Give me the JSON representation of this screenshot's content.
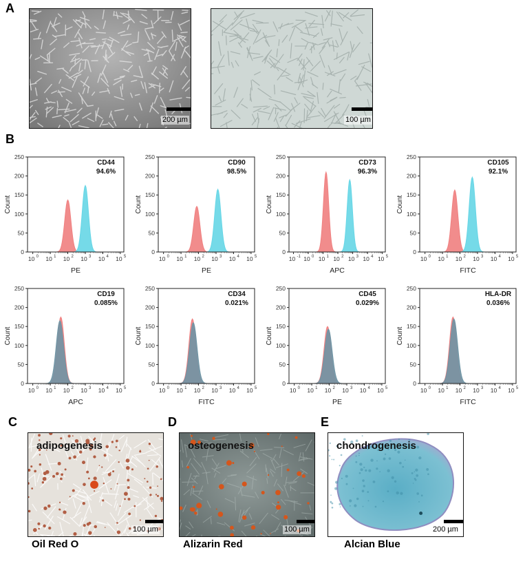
{
  "panels": {
    "A": {
      "letter": "A",
      "images": [
        {
          "scale_label": "200 µm",
          "tone": "#9c9c9c"
        },
        {
          "scale_label": "100 µm",
          "tone": "#c9d3d0"
        }
      ]
    },
    "B": {
      "letter": "B"
    },
    "C": {
      "letter": "C",
      "title": "adipogenesis",
      "scale_label": "100 µm",
      "stain": "Oil Red O"
    },
    "D": {
      "letter": "D",
      "title": "osteogenesis",
      "scale_label": "100 µm",
      "stain": "Alizarin Red"
    },
    "E": {
      "letter": "E",
      "title": "chondrogenesis",
      "scale_label": "200 µm",
      "stain": "Alcian Blue"
    }
  },
  "colors": {
    "control": "#f08080",
    "marker": "#66d6e6",
    "overlap": "#6f94a4"
  },
  "chart_data": [
    {
      "type": "area",
      "marker": "CD44",
      "percent": "94.6%",
      "xlabel": "PE",
      "ylim": [
        0,
        250
      ],
      "yticks": [
        "0",
        "50",
        "100",
        "150",
        "200",
        "250"
      ],
      "xticks": [
        "10",
        "10",
        "10",
        "10",
        "10",
        "10"
      ],
      "xtick_exp": [
        "0",
        "1",
        "2",
        "3",
        "4",
        "5"
      ],
      "control_peak": {
        "log10": 2.0,
        "height": 137
      },
      "marker_peak": {
        "log10": 3.0,
        "height": 175
      },
      "overlap": false
    },
    {
      "type": "area",
      "marker": "CD90",
      "percent": "98.5%",
      "xlabel": "PE",
      "ylim": [
        0,
        250
      ],
      "yticks": [
        "0",
        "50",
        "100",
        "150",
        "200",
        "250"
      ],
      "xticks": [
        "10",
        "10",
        "10",
        "10",
        "10",
        "10"
      ],
      "xtick_exp": [
        "0",
        "1",
        "2",
        "3",
        "4",
        "5"
      ],
      "control_peak": {
        "log10": 1.9,
        "height": 120
      },
      "marker_peak": {
        "log10": 3.1,
        "height": 165
      },
      "overlap": false
    },
    {
      "type": "area",
      "marker": "CD73",
      "percent": "96.3%",
      "xlabel": "APC",
      "ylim": [
        0,
        250
      ],
      "yticks": [
        "0",
        "50",
        "100",
        "150",
        "200",
        "250"
      ],
      "xticks": [
        "10",
        "10",
        "10",
        "10",
        "10",
        "10",
        "10"
      ],
      "xtick_exp": [
        "-1",
        "0",
        "1",
        "2",
        "3",
        "4",
        "5"
      ],
      "control_peak": {
        "log10": 1.2,
        "height": 210
      },
      "marker_peak": {
        "log10": 2.8,
        "height": 190
      },
      "overlap": false
    },
    {
      "type": "area",
      "marker": "CD105",
      "percent": "92.1%",
      "xlabel": "FITC",
      "ylim": [
        0,
        250
      ],
      "yticks": [
        "0",
        "50",
        "100",
        "150",
        "200",
        "250"
      ],
      "xticks": [
        "10",
        "10",
        "10",
        "10",
        "10",
        "10"
      ],
      "xtick_exp": [
        "0",
        "1",
        "2",
        "3",
        "4",
        "5"
      ],
      "control_peak": {
        "log10": 1.7,
        "height": 163
      },
      "marker_peak": {
        "log10": 2.7,
        "height": 197
      },
      "overlap": false
    },
    {
      "type": "area",
      "marker": "CD19",
      "percent": "0.085%",
      "xlabel": "APC",
      "ylim": [
        0,
        250
      ],
      "yticks": [
        "0",
        "50",
        "100",
        "150",
        "200",
        "250"
      ],
      "xticks": [
        "10",
        "10",
        "10",
        "10",
        "10",
        "10"
      ],
      "xtick_exp": [
        "0",
        "1",
        "2",
        "3",
        "4",
        "5"
      ],
      "control_peak": {
        "log10": 1.6,
        "height": 175
      },
      "marker_peak": {
        "log10": 1.55,
        "height": 165
      },
      "overlap": true
    },
    {
      "type": "area",
      "marker": "CD34",
      "percent": "0.021%",
      "xlabel": "FITC",
      "ylim": [
        0,
        250
      ],
      "yticks": [
        "0",
        "50",
        "100",
        "150",
        "200",
        "250"
      ],
      "xticks": [
        "10",
        "10",
        "10",
        "10",
        "10",
        "10"
      ],
      "xtick_exp": [
        "0",
        "1",
        "2",
        "3",
        "4",
        "5"
      ],
      "control_peak": {
        "log10": 1.65,
        "height": 170
      },
      "marker_peak": {
        "log10": 1.7,
        "height": 160
      },
      "overlap": true
    },
    {
      "type": "area",
      "marker": "CD45",
      "percent": "0.029%",
      "xlabel": "PE",
      "ylim": [
        0,
        250
      ],
      "yticks": [
        "0",
        "50",
        "100",
        "150",
        "200",
        "250"
      ],
      "xticks": [
        "10",
        "10",
        "10",
        "10",
        "10",
        "10"
      ],
      "xtick_exp": [
        "0",
        "1",
        "2",
        "3",
        "4",
        "5"
      ],
      "control_peak": {
        "log10": 1.9,
        "height": 150
      },
      "marker_peak": {
        "log10": 1.95,
        "height": 143
      },
      "overlap": true
    },
    {
      "type": "area",
      "marker": "HLA-DR",
      "percent": "0.036%",
      "xlabel": "FITC",
      "ylim": [
        0,
        250
      ],
      "yticks": [
        "0",
        "50",
        "100",
        "150",
        "200",
        "250"
      ],
      "xticks": [
        "10",
        "10",
        "10",
        "10",
        "10",
        "10"
      ],
      "xtick_exp": [
        "0",
        "1",
        "2",
        "3",
        "4",
        "5"
      ],
      "control_peak": {
        "log10": 1.6,
        "height": 175
      },
      "marker_peak": {
        "log10": 1.65,
        "height": 170
      },
      "overlap": true
    }
  ]
}
